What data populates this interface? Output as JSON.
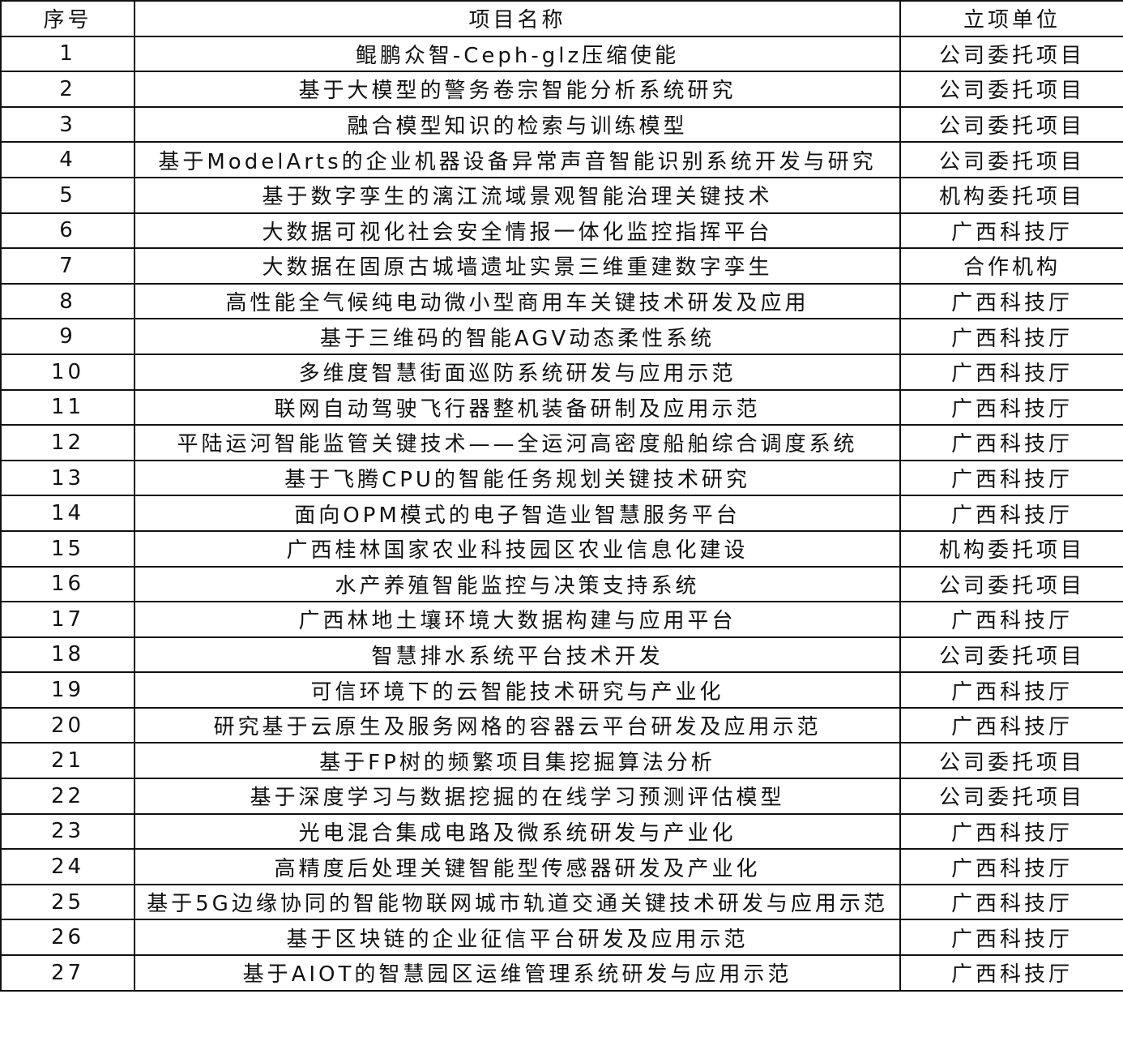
{
  "headers": [
    "序号",
    "项目名称",
    "立项单位"
  ],
  "rows": [
    {
      "no": "1",
      "name": "鲲鹏众智-Ceph-glz压缩使能",
      "unit": "公司委托项目"
    },
    {
      "no": "2",
      "name": "基于大模型的警务卷宗智能分析系统研究",
      "unit": "公司委托项目"
    },
    {
      "no": "3",
      "name": "融合模型知识的检索与训练模型",
      "unit": "公司委托项目"
    },
    {
      "no": "4",
      "name": "基于ModelArts的企业机器设备异常声音智能识别系统开发与研究",
      "unit": "公司委托项目"
    },
    {
      "no": "5",
      "name": "基于数字孪生的漓江流域景观智能治理关键技术",
      "unit": "机构委托项目"
    },
    {
      "no": "6",
      "name": "大数据可视化社会安全情报一体化监控指挥平台",
      "unit": "广西科技厅"
    },
    {
      "no": "7",
      "name": "大数据在固原古城墙遗址实景三维重建数字孪生",
      "unit": "合作机构"
    },
    {
      "no": "8",
      "name": "高性能全气候纯电动微小型商用车关键技术研发及应用",
      "unit": "广西科技厅"
    },
    {
      "no": "9",
      "name": "基于三维码的智能AGV动态柔性系统",
      "unit": "广西科技厅"
    },
    {
      "no": "10",
      "name": "多维度智慧街面巡防系统研发与应用示范",
      "unit": "广西科技厅"
    },
    {
      "no": "11",
      "name": "联网自动驾驶飞行器整机装备研制及应用示范",
      "unit": "广西科技厅"
    },
    {
      "no": "12",
      "name": "平陆运河智能监管关键技术——全运河高密度船舶综合调度系统",
      "unit": "广西科技厅"
    },
    {
      "no": "13",
      "name": "基于飞腾CPU的智能任务规划关键技术研究",
      "unit": "广西科技厅"
    },
    {
      "no": "14",
      "name": "面向OPM模式的电子智造业智慧服务平台",
      "unit": "广西科技厅"
    },
    {
      "no": "15",
      "name": "广西桂林国家农业科技园区农业信息化建设",
      "unit": "机构委托项目"
    },
    {
      "no": "16",
      "name": "水产养殖智能监控与决策支持系统",
      "unit": "公司委托项目"
    },
    {
      "no": "17",
      "name": "广西林地土壤环境大数据构建与应用平台",
      "unit": "广西科技厅"
    },
    {
      "no": "18",
      "name": "智慧排水系统平台技术开发",
      "unit": "公司委托项目"
    },
    {
      "no": "19",
      "name": "可信环境下的云智能技术研究与产业化",
      "unit": "广西科技厅"
    },
    {
      "no": "20",
      "name": "研究基于云原生及服务网格的容器云平台研发及应用示范",
      "unit": "广西科技厅"
    },
    {
      "no": "21",
      "name": "基于FP树的频繁项目集挖掘算法分析",
      "unit": "公司委托项目"
    },
    {
      "no": "22",
      "name": "基于深度学习与数据挖掘的在线学习预测评估模型",
      "unit": "公司委托项目"
    },
    {
      "no": "23",
      "name": "光电混合集成电路及微系统研发与产业化",
      "unit": "广西科技厅"
    },
    {
      "no": "24",
      "name": "高精度后处理关键智能型传感器研发及产业化",
      "unit": "广西科技厅"
    },
    {
      "no": "25",
      "name": "基于5G边缘协同的智能物联网城市轨道交通关键技术研发与应用示范",
      "unit": "广西科技厅"
    },
    {
      "no": "26",
      "name": "基于区块链的企业征信平台研发及应用示范",
      "unit": "广西科技厅"
    },
    {
      "no": "27",
      "name": "基于AIOT的智慧园区运维管理系统研发与应用示范",
      "unit": "广西科技厅"
    }
  ]
}
